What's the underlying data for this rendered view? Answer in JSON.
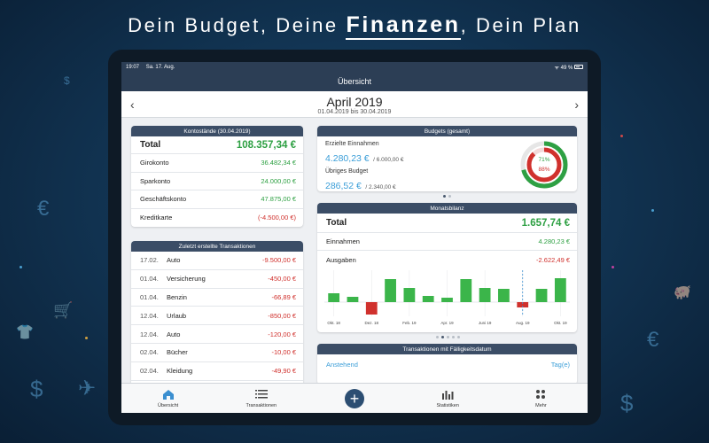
{
  "headline": {
    "pre": "Dein Budget, Deine ",
    "highlight": "Finanzen",
    "post": ", Dein Plan"
  },
  "statusbar": {
    "time": "19:07",
    "date": "Sa. 17. Aug.",
    "battery": "49 %"
  },
  "navbar": {
    "title": "Übersicht"
  },
  "period": {
    "month": "April 2019",
    "range": "01.04.2019 bis 30.04.2019"
  },
  "accounts": {
    "title": "Kontostände (30.04.2019)",
    "total_label": "Total",
    "total_value": "108.357,34 €",
    "items": [
      {
        "name": "Girokonto",
        "value": "36.482,34 €",
        "color": "green"
      },
      {
        "name": "Sparkonto",
        "value": "24.000,00 €",
        "color": "green"
      },
      {
        "name": "Geschäftskonto",
        "value": "47.875,00 €",
        "color": "green"
      },
      {
        "name": "Kreditkarte",
        "value": "(-4.500,00 €)",
        "color": "red"
      }
    ]
  },
  "transactions": {
    "title": "Zuletzt erstellte Transaktionen",
    "items": [
      {
        "date": "17.02.",
        "name": "Auto",
        "amount": "-9.500,00 €"
      },
      {
        "date": "01.04.",
        "name": "Versicherung",
        "amount": "-450,00 €"
      },
      {
        "date": "01.04.",
        "name": "Benzin",
        "amount": "-66,89 €"
      },
      {
        "date": "12.04.",
        "name": "Urlaub",
        "amount": "-850,00 €"
      },
      {
        "date": "12.04.",
        "name": "Auto",
        "amount": "-120,00 €"
      },
      {
        "date": "02.04.",
        "name": "Bücher",
        "amount": "-10,00 €"
      },
      {
        "date": "02.04.",
        "name": "Kleidung",
        "amount": "-49,90 €"
      }
    ]
  },
  "budgets": {
    "title": "Budgets (gesamt)",
    "income_label": "Erzielte Einnahmen",
    "income_value": "4.280,23 €",
    "income_total": "/ 6.000,00 €",
    "remaining_label": "Übriges Budget",
    "remaining_value": "286,52 €",
    "remaining_total": "/ 2.340,00 €",
    "ring_outer_pct": "71%",
    "ring_inner_pct": "88%",
    "ring_outer_fraction": 0.71,
    "ring_inner_fraction": 0.88
  },
  "balance": {
    "title": "Monatsbilanz",
    "total_label": "Total",
    "total_value": "1.657,74 €",
    "income_label": "Einnahmen",
    "income_value": "4.280,23 €",
    "expenses_label": "Ausgaben",
    "expenses_value": "-2.622,49 €"
  },
  "chart_data": {
    "type": "bar",
    "categories": [
      "Okt. 18",
      "Nov. 18",
      "Dez. 18",
      "Jan. 19",
      "Feb. 19",
      "Mär. 19",
      "Apr. 19",
      "Mai 19",
      "Juni 19",
      "Juli 19",
      "Aug. 19",
      "Sep. 19",
      "Okt. 19"
    ],
    "tick_labels": [
      "Okt. 18",
      "Dez. 18",
      "Feb. 19",
      "Apr. 19",
      "Juni 19",
      "Aug. 19",
      "Okt. 19"
    ],
    "values": [
      1000,
      600,
      -1400,
      2600,
      1600,
      700,
      500,
      2600,
      1600,
      1500,
      -600,
      1500,
      2700
    ],
    "highlight_index": 10,
    "colors": {
      "positive": "#3bb54a",
      "negative": "#d0312d"
    }
  },
  "due": {
    "title": "Transaktionen mit Fälligkeitsdatum",
    "col_left": "Anstehend",
    "col_right": "Tag(e)"
  },
  "tabs": [
    {
      "label": "Übersicht",
      "icon": "home-icon"
    },
    {
      "label": "Transaktionen",
      "icon": "list-icon"
    },
    {
      "label": "",
      "icon": "add-icon"
    },
    {
      "label": "Statistiken",
      "icon": "bar-chart-icon"
    },
    {
      "label": "Mehr",
      "icon": "more-grid-icon"
    }
  ],
  "colors": {
    "accent": "#3b9ed8",
    "green": "#2ea043",
    "red": "#d0312d",
    "header": "#3b4d66"
  }
}
